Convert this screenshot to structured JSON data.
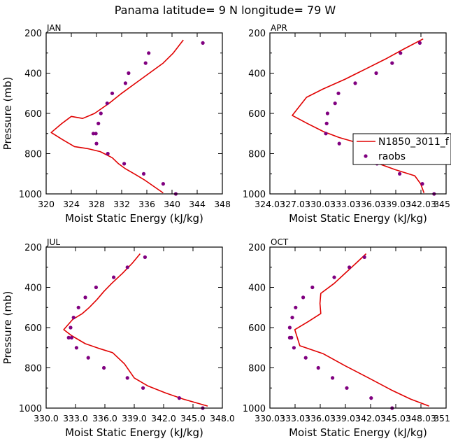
{
  "title": "Panama   latitude= 9 N longitude= 79 W",
  "colors": {
    "model": "#e00000",
    "obs": "#800080",
    "axis": "#000000"
  },
  "legend": {
    "model_label": "N1850_3011_f",
    "obs_label": "raobs"
  },
  "chart_data": [
    {
      "type": "line",
      "panel": "JAN",
      "xlabel": "Moist Static Energy (kJ/kg)",
      "ylabel": "Pressure (mb)",
      "xlim": [
        320,
        348
      ],
      "ylim": [
        1000,
        200
      ],
      "xticks": [
        320,
        324,
        328,
        332,
        336,
        340,
        344,
        348
      ],
      "xtick_labels": [
        "320",
        "324",
        "328",
        "332",
        "336",
        "340",
        "344",
        "348"
      ],
      "yticks": [
        200,
        400,
        600,
        800,
        1000
      ],
      "ytick_labels": [
        "200",
        "400",
        "600",
        "800",
        "1000"
      ],
      "series": [
        {
          "name": "N1850_3011_f",
          "style": "line",
          "x": [
            341.8,
            340.2,
            338.6,
            336.4,
            334.2,
            332.0,
            330.0,
            327.7,
            325.8,
            324.0,
            322.5,
            320.8,
            322.6,
            324.5,
            326.6,
            328.6,
            330.5,
            331.5,
            332.6,
            334.0,
            335.6,
            337.2,
            338.6
          ],
          "y": [
            235,
            300,
            350,
            400,
            450,
            500,
            550,
            600,
            625,
            615,
            650,
            695,
            730,
            765,
            775,
            790,
            820,
            850,
            875,
            900,
            930,
            965,
            995
          ]
        },
        {
          "name": "raobs",
          "style": "markers",
          "x": [
            344.9,
            336.3,
            335.8,
            333.1,
            332.6,
            330.5,
            329.7,
            328.7,
            328.3,
            327.9,
            327.5,
            328.0,
            329.8,
            332.4,
            335.5,
            338.6,
            340.6
          ],
          "y": [
            250,
            300,
            350,
            400,
            450,
            500,
            550,
            600,
            650,
            700,
            700,
            750,
            800,
            850,
            900,
            950,
            1000
          ]
        }
      ]
    },
    {
      "type": "line",
      "panel": "APR",
      "xlabel": "Moist Static Energy (kJ/kg)",
      "ylabel": "",
      "xlim": [
        324.03,
        345.03
      ],
      "ylim": [
        1000,
        200
      ],
      "xticks": [
        324.03,
        327.03,
        330.03,
        333.03,
        336.03,
        339.03,
        342.03,
        345.03
      ],
      "xtick_labels": [
        "324.03",
        "327.03",
        "330.03",
        "333.03",
        "336.03",
        "339.03",
        "342.03",
        "345.0"
      ],
      "yticks": [
        200,
        400,
        600,
        800,
        1000
      ],
      "ytick_labels": [
        "200",
        "400",
        "600",
        "800",
        "1000"
      ],
      "series": [
        {
          "name": "N1850_3011_f",
          "style": "line",
          "x": [
            342.3,
            340.0,
            337.8,
            335.4,
            333.0,
            330.3,
            328.4,
            326.7,
            328.5,
            330.4,
            332.3,
            334.4,
            335.5,
            335.7,
            337.0,
            339.0,
            341.3,
            342.0,
            342.4
          ],
          "y": [
            230,
            280,
            330,
            380,
            430,
            480,
            520,
            610,
            650,
            690,
            720,
            745,
            750,
            810,
            850,
            880,
            910,
            950,
            995
          ]
        },
        {
          "name": "raobs",
          "style": "markers",
          "x": [
            341.9,
            339.6,
            338.6,
            336.7,
            334.2,
            332.2,
            331.8,
            330.9,
            330.8,
            330.7,
            332.3,
            334.3,
            336.4,
            336.8,
            339.5,
            342.2,
            343.6
          ],
          "y": [
            250,
            300,
            350,
            400,
            450,
            500,
            550,
            600,
            650,
            700,
            750,
            800,
            810,
            850,
            900,
            950,
            1000
          ]
        }
      ]
    },
    {
      "type": "line",
      "panel": "JUL",
      "xlabel": "Moist Static Energy (kJ/kg)",
      "ylabel": "Pressure (mb)",
      "xlim": [
        330,
        348
      ],
      "ylim": [
        1000,
        200
      ],
      "xticks": [
        330,
        333,
        336,
        339,
        342,
        345,
        348
      ],
      "xtick_labels": [
        "330.0",
        "333.0",
        "336.0",
        "339.0",
        "342.0",
        "345.0",
        "348.0"
      ],
      "yticks": [
        200,
        400,
        600,
        800,
        1000
      ],
      "ytick_labels": [
        "200",
        "400",
        "600",
        "800",
        "1000"
      ],
      "series": [
        {
          "name": "N1850_3011_f",
          "style": "line",
          "x": [
            339.6,
            338.8,
            337.8,
            336.7,
            335.9,
            335.2,
            334.4,
            333.7,
            332.7,
            331.8,
            332.6,
            334.0,
            335.5,
            336.8,
            338.0,
            339.0,
            340.4,
            342.2,
            344.0,
            346.5
          ],
          "y": [
            233,
            280,
            330,
            380,
            420,
            460,
            500,
            530,
            560,
            610,
            640,
            680,
            705,
            725,
            780,
            850,
            890,
            925,
            955,
            990
          ]
        },
        {
          "name": "raobs",
          "style": "markers",
          "x": [
            340.1,
            338.3,
            336.9,
            335.1,
            334.0,
            333.3,
            332.8,
            332.5,
            332.3,
            332.6,
            333.1,
            334.3,
            335.9,
            338.3,
            339.9,
            343.6,
            346.0
          ],
          "y": [
            250,
            300,
            350,
            400,
            450,
            500,
            550,
            600,
            650,
            650,
            700,
            750,
            800,
            850,
            900,
            950,
            1000
          ]
        }
      ]
    },
    {
      "type": "line",
      "panel": "OCT",
      "xlabel": "Moist Static Energy (kJ/kg)",
      "ylabel": "",
      "xlim": [
        330.03,
        351.03
      ],
      "ylim": [
        1000,
        200
      ],
      "xticks": [
        330.03,
        333.03,
        336.03,
        339.03,
        342.03,
        345.03,
        348.03,
        351.03
      ],
      "xtick_labels": [
        "330.03",
        "333.03",
        "336.03",
        "339.03",
        "342.03",
        "345.03",
        "348.03",
        "351.0"
      ],
      "yticks": [
        200,
        400,
        600,
        800,
        1000
      ],
      "ytick_labels": [
        "200",
        "400",
        "600",
        "800",
        "1000"
      ],
      "series": [
        {
          "name": "N1850_3011_f",
          "style": "line",
          "x": [
            341.5,
            340.3,
            339.0,
            337.7,
            336.1,
            336.0,
            336.1,
            334.6,
            333.0,
            333.3,
            333.6,
            336.4,
            339.0,
            341.8,
            344.5,
            346.8,
            349.0
          ],
          "y": [
            233,
            280,
            330,
            380,
            430,
            480,
            530,
            570,
            610,
            650,
            690,
            730,
            790,
            850,
            910,
            955,
            990
          ]
        },
        {
          "name": "raobs",
          "style": "markers",
          "x": [
            341.3,
            339.5,
            337.7,
            335.1,
            334.0,
            333.1,
            332.7,
            332.4,
            332.4,
            332.6,
            332.9,
            334.3,
            335.8,
            337.5,
            339.2,
            342.1,
            344.6
          ],
          "y": [
            250,
            300,
            350,
            400,
            450,
            500,
            550,
            600,
            650,
            650,
            700,
            750,
            800,
            850,
            900,
            950,
            1000
          ]
        }
      ]
    }
  ]
}
